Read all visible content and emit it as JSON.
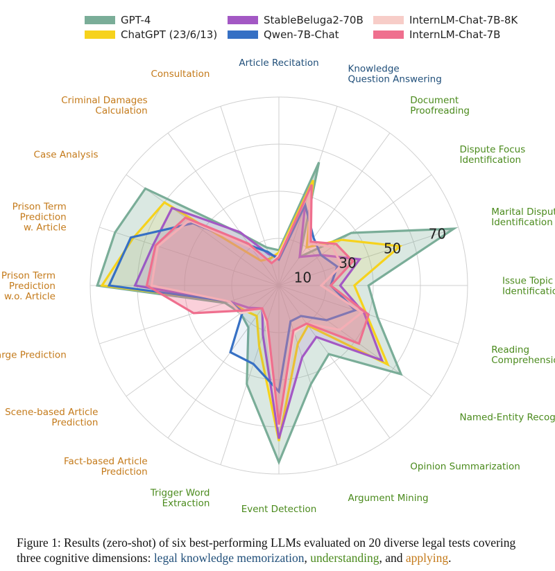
{
  "chart_data": {
    "type": "radar",
    "rlim": [
      0,
      80
    ],
    "r_ticks": [
      "10",
      "30",
      "50",
      "70"
    ],
    "r_tick_values": [
      10,
      30,
      50,
      70
    ],
    "categories": [
      {
        "label": "Article Recitation",
        "dim": "memorization"
      },
      {
        "label": "Knowledge\nQuestion Answering",
        "dim": "memorization"
      },
      {
        "label": "Document\nProofreading",
        "dim": "understanding"
      },
      {
        "label": "Dispute Focus\nIdentification",
        "dim": "understanding"
      },
      {
        "label": "Marital Disputes\nIdentification",
        "dim": "understanding"
      },
      {
        "label": "Issue Topic\nIdentification",
        "dim": "understanding"
      },
      {
        "label": "Reading\nComprehension",
        "dim": "understanding"
      },
      {
        "label": "Named-Entity Recognition",
        "dim": "understanding"
      },
      {
        "label": "Opinion Summarization",
        "dim": "understanding"
      },
      {
        "label": "Argument Mining",
        "dim": "understanding"
      },
      {
        "label": "Event Detection",
        "dim": "understanding"
      },
      {
        "label": "Trigger Word\nExtraction",
        "dim": "understanding"
      },
      {
        "label": "Fact-based Article\nPrediction",
        "dim": "applying"
      },
      {
        "label": "Scene-based Article\nPrediction",
        "dim": "applying"
      },
      {
        "label": "Charge Prediction",
        "dim": "applying"
      },
      {
        "label": "Prison Term\nPrediction\nw.o. Article",
        "dim": "applying"
      },
      {
        "label": "Prison Term\nPrediction\nw. Article",
        "dim": "applying"
      },
      {
        "label": "Case Analysis",
        "dim": "applying"
      },
      {
        "label": "Criminal Damages\nCalculation",
        "dim": "applying"
      },
      {
        "label": "Consultation",
        "dim": "applying"
      }
    ],
    "series": [
      {
        "name": "GPT-4",
        "color": "#7aad98",
        "fill": "rgba(122,173,152,0.28)",
        "values": [
          15,
          55,
          15,
          38,
          78,
          38,
          44,
          64,
          36,
          44,
          75,
          44,
          22,
          20,
          24,
          77,
          73,
          70,
          27,
          17
        ]
      },
      {
        "name": "ChatGPT (23/6/13)",
        "color": "#f6d21c",
        "fill": "rgba(246,210,28,0.12)",
        "values": [
          14,
          47,
          20,
          33,
          54,
          32,
          39,
          57,
          21,
          26,
          66,
          27,
          16,
          18,
          22,
          75,
          65,
          60,
          13,
          12
        ]
      },
      {
        "name": "StableBeluga2-70B",
        "color": "#a358c4",
        "fill": "rgba(163,88,196,0.14)",
        "values": [
          12,
          36,
          15,
          22,
          36,
          26,
          38,
          54,
          27,
          32,
          65,
          22,
          12,
          16,
          22,
          61,
          56,
          56,
          28,
          14
        ]
      },
      {
        "name": "Qwen-7B-Chat",
        "color": "#3670c4",
        "fill": "rgba(54,112,196,0.08)",
        "values": [
          11,
          36,
          25,
          22,
          26,
          22,
          34,
          25,
          16,
          16,
          45,
          35,
          35,
          19,
          22,
          72,
          66,
          45,
          21,
          15
        ]
      },
      {
        "name": "InternLM-Chat-7B-8K",
        "color": "#f7cdc8",
        "fill": "rgba(247,205,200,0.12)",
        "values": [
          13,
          42,
          22,
          28,
          28,
          18,
          37,
          32,
          20,
          21,
          60,
          17,
          12,
          20,
          22,
          54,
          54,
          47,
          20,
          10
        ]
      },
      {
        "name": "InternLM-Chat-7B",
        "color": "#ef6f8e",
        "fill": "rgba(239,111,142,0.33)",
        "values": [
          12,
          45,
          23,
          30,
          33,
          22,
          40,
          42,
          20,
          20,
          59,
          16,
          12,
          18,
          38,
          56,
          55,
          49,
          22,
          10
        ]
      }
    ],
    "legend_position": "top"
  },
  "caption": {
    "line1": "Figure 1: Results (zero-shot) of six best-performing LLMs evaluated on 20 diverse legal tests covering",
    "line2_prefix": "three cognitive dimensions: ",
    "memorization": "legal knowledge memorization",
    "sep1": ", ",
    "understanding": "understanding",
    "sep2": ", and ",
    "applying": "applying",
    "end": "."
  },
  "colors": {
    "memorization": "#1f4e79",
    "understanding": "#4a8a1c",
    "applying": "#c47a1a"
  }
}
